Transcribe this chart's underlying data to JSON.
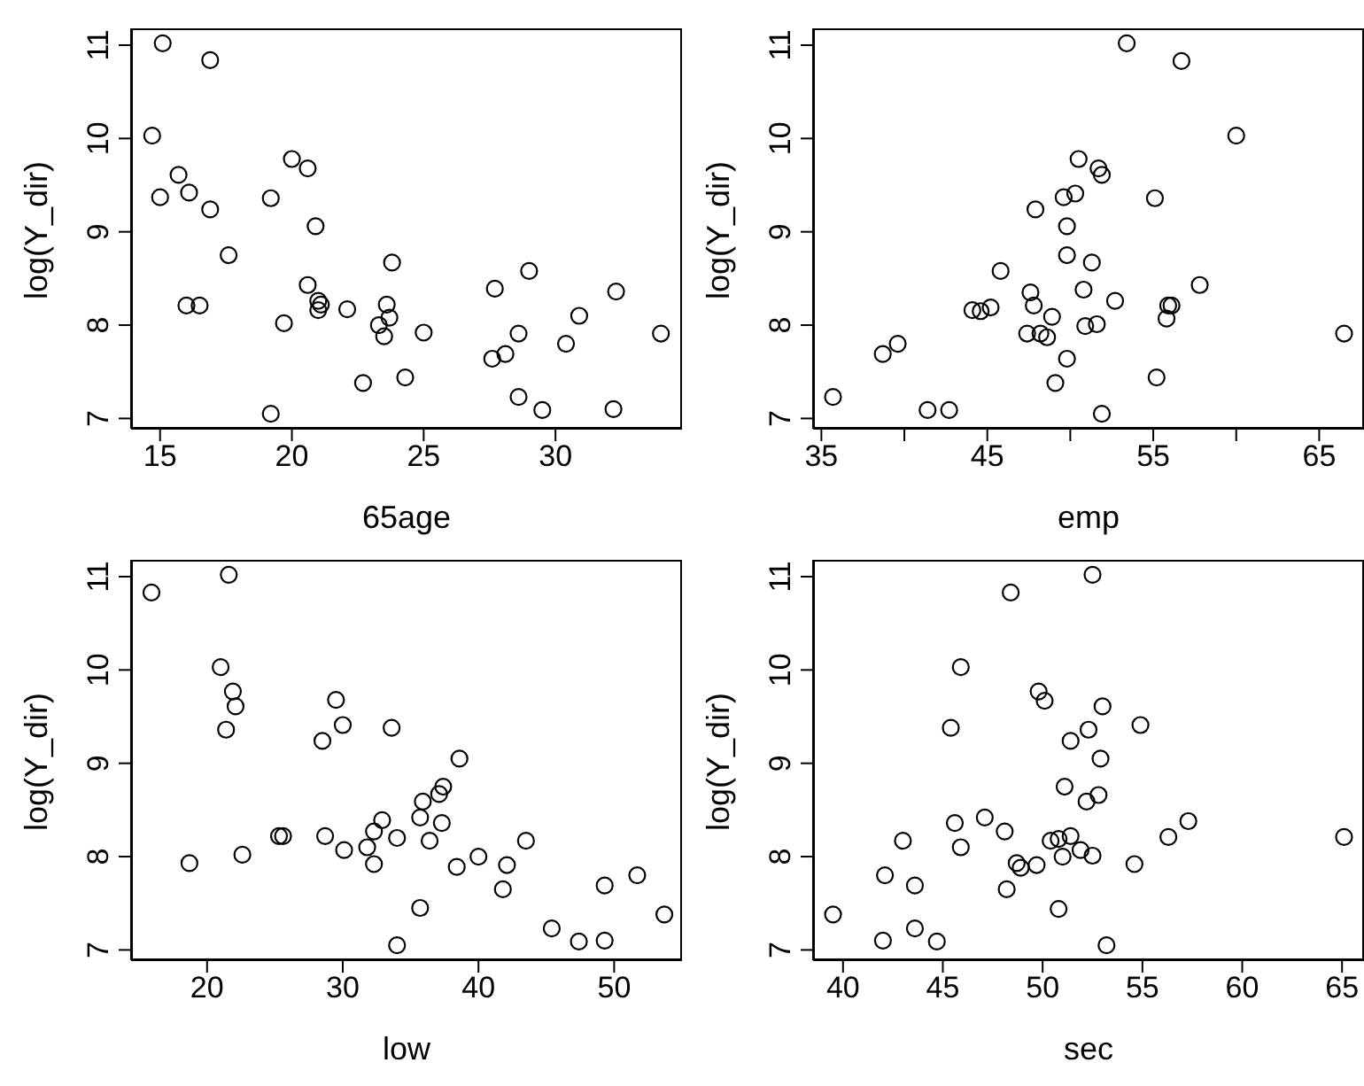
{
  "chart_data": [
    {
      "type": "scatter",
      "xlabel": "65age",
      "ylabel": "log(Y_dir)",
      "marker": "circle",
      "grid": false,
      "xlim": [
        13.9,
        34.8
      ],
      "ylim": [
        6.89,
        11.18
      ],
      "xticks": [
        15,
        20,
        25,
        30
      ],
      "yticks": [
        7,
        8,
        9,
        10,
        11
      ],
      "series": [
        {
          "color": "#000000",
          "x": [
            15.1,
            16.9,
            14.7,
            20.0,
            20.6,
            15.7,
            15.0,
            16.1,
            16.9,
            19.2,
            20.9,
            17.6,
            23.8,
            20.6,
            16.0,
            16.5,
            21.0,
            21.1,
            21.0,
            22.1,
            23.6,
            23.7,
            23.3,
            23.5,
            19.7,
            25.0,
            22.7,
            24.3,
            19.2,
            27.7,
            29.0,
            32.3,
            30.9,
            28.6,
            30.4,
            27.6,
            28.1,
            28.6,
            29.5,
            32.2,
            34.0
          ],
          "values": [
            11.02,
            10.84,
            10.03,
            9.78,
            9.68,
            9.61,
            9.37,
            9.42,
            9.24,
            9.36,
            9.06,
            8.75,
            8.67,
            8.43,
            8.21,
            8.21,
            8.26,
            8.22,
            8.16,
            8.17,
            8.22,
            8.08,
            8.0,
            7.88,
            8.02,
            7.92,
            7.38,
            7.44,
            7.05,
            8.39,
            8.58,
            8.36,
            8.1,
            7.91,
            7.8,
            7.64,
            7.69,
            7.23,
            7.09,
            7.1,
            7.91
          ]
        }
      ]
    },
    {
      "type": "scatter",
      "xlabel": "emp",
      "ylabel": "log(Y_dir)",
      "marker": "circle",
      "grid": false,
      "xlim": [
        34.5,
        67.7
      ],
      "ylim": [
        6.89,
        11.18
      ],
      "xticks": [
        35,
        {
          "value": 40,
          "label": null
        },
        45,
        {
          "value": 50,
          "label": null
        },
        55,
        {
          "value": 60,
          "label": null
        },
        65
      ],
      "yticks": [
        7,
        8,
        9,
        10,
        11
      ],
      "series": [
        {
          "color": "#000000",
          "x": [
            35.7,
            38.7,
            39.6,
            41.4,
            42.7,
            44.1,
            44.6,
            45.2,
            45.8,
            47.4,
            47.6,
            47.8,
            47.9,
            48.2,
            48.6,
            48.9,
            49.1,
            49.6,
            49.8,
            49.8,
            49.8,
            50.3,
            50.5,
            50.8,
            50.9,
            51.3,
            51.6,
            51.7,
            51.9,
            51.9,
            52.7,
            53.4,
            55.1,
            55.2,
            55.8,
            55.9,
            56.1,
            56.7,
            57.8,
            60.0,
            66.5
          ],
          "values": [
            7.23,
            7.69,
            7.8,
            7.09,
            7.09,
            8.16,
            8.15,
            8.19,
            8.58,
            7.91,
            8.35,
            8.21,
            9.24,
            7.91,
            7.87,
            8.09,
            7.38,
            9.37,
            9.06,
            8.75,
            7.64,
            9.41,
            9.78,
            8.38,
            7.99,
            8.67,
            8.01,
            9.68,
            9.61,
            7.05,
            8.26,
            11.02,
            9.36,
            7.44,
            8.07,
            8.21,
            8.21,
            10.83,
            8.43,
            10.03,
            7.91
          ]
        }
      ]
    },
    {
      "type": "scatter",
      "xlabel": "low",
      "ylabel": "log(Y_dir)",
      "marker": "circle",
      "grid": false,
      "xlim": [
        14.4,
        55
      ],
      "ylim": [
        6.89,
        11.18
      ],
      "xticks": [
        20,
        30,
        40,
        50
      ],
      "yticks": [
        7,
        8,
        9,
        10,
        11
      ],
      "series": [
        {
          "color": "#000000",
          "x": [
            15.9,
            21.6,
            21.0,
            21.9,
            22.1,
            21.4,
            29.5,
            30.0,
            28.5,
            33.6,
            38.6,
            37.4,
            37.1,
            35.9,
            35.7,
            37.3,
            36.4,
            32.9,
            32.3,
            34.0,
            25.3,
            25.6,
            28.7,
            30.1,
            31.8,
            32.3,
            18.7,
            22.6,
            38.4,
            40.0,
            42.1,
            43.5,
            41.8,
            35.7,
            34.0,
            45.4,
            47.4,
            49.3,
            49.3,
            51.7,
            53.7
          ],
          "values": [
            10.83,
            11.02,
            10.03,
            9.77,
            9.61,
            9.36,
            9.68,
            9.41,
            9.24,
            9.38,
            9.05,
            8.75,
            8.67,
            8.59,
            8.42,
            8.36,
            8.17,
            8.39,
            8.27,
            8.2,
            8.22,
            8.22,
            8.22,
            8.07,
            8.1,
            7.92,
            7.93,
            8.02,
            7.89,
            8.0,
            7.91,
            8.17,
            7.65,
            7.45,
            7.05,
            7.23,
            7.09,
            7.1,
            7.69,
            7.8,
            7.38
          ]
        }
      ]
    },
    {
      "type": "scatter",
      "xlabel": "sec",
      "ylabel": "log(Y_dir)",
      "marker": "circle",
      "grid": false,
      "xlim": [
        38.5,
        66.1
      ],
      "ylim": [
        6.89,
        11.18
      ],
      "xticks": [
        40,
        45,
        50,
        55,
        60,
        65
      ],
      "yticks": [
        7,
        8,
        9,
        10,
        11
      ],
      "series": [
        {
          "color": "#000000",
          "x": [
            39.5,
            42.0,
            42.1,
            43.6,
            43.6,
            43.0,
            44.7,
            45.4,
            45.9,
            45.6,
            45.9,
            47.1,
            48.1,
            48.2,
            48.4,
            48.7,
            48.9,
            49.7,
            49.8,
            50.1,
            50.4,
            50.8,
            51.0,
            51.1,
            50.8,
            51.4,
            51.4,
            51.9,
            52.3,
            52.5,
            52.5,
            52.2,
            52.8,
            52.9,
            53.0,
            53.2,
            54.6,
            54.9,
            56.3,
            57.3,
            65.1
          ],
          "values": [
            7.38,
            7.1,
            7.8,
            7.23,
            7.69,
            8.17,
            7.09,
            9.38,
            10.03,
            8.36,
            8.1,
            8.42,
            8.27,
            7.65,
            10.83,
            7.93,
            7.88,
            7.91,
            9.77,
            9.67,
            8.17,
            8.19,
            8.0,
            8.75,
            7.44,
            8.22,
            9.24,
            8.07,
            9.36,
            11.02,
            8.01,
            8.59,
            8.66,
            9.05,
            9.61,
            7.05,
            7.92,
            9.41,
            8.21,
            8.38,
            8.21
          ]
        }
      ]
    }
  ]
}
